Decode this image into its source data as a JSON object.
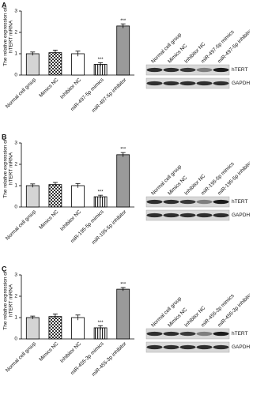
{
  "chart_data": [
    {
      "type": "bar",
      "panel": "A",
      "y_label": [
        "The relative expression of",
        "hTERT mRNA"
      ],
      "categories": [
        "Normal cell group",
        "Mimics NC",
        "Inhibitor NC",
        "miR-497-5p mimics",
        "miR-497-5p inhibitor"
      ],
      "values": [
        1.0,
        1.05,
        1.0,
        0.5,
        2.3
      ],
      "errors": [
        0.08,
        0.12,
        0.12,
        0.08,
        0.1
      ],
      "significance": [
        null,
        null,
        null,
        "***",
        "***"
      ],
      "fills": [
        "#d4d4d4",
        "checker",
        "#ffffff",
        "stripes",
        "#9a9a9a"
      ],
      "ylim": [
        0,
        3
      ],
      "yticks": [
        0,
        1,
        2,
        3
      ],
      "blot_rows": [
        "hTERT",
        "GAPDH"
      ]
    },
    {
      "type": "bar",
      "panel": "B",
      "y_label": [
        "The relative expression of",
        "hTERT mRNA"
      ],
      "categories": [
        "Normal cell group",
        "Mimics NC",
        "Inhibitor NC",
        "miR-195-5p mimics",
        "miR-195-5p inhibitor"
      ],
      "values": [
        1.0,
        1.05,
        1.0,
        0.48,
        2.45
      ],
      "errors": [
        0.08,
        0.1,
        0.1,
        0.07,
        0.1
      ],
      "significance": [
        null,
        null,
        null,
        "***",
        "***"
      ],
      "fills": [
        "#d4d4d4",
        "checker",
        "#ffffff",
        "stripes",
        "#9a9a9a"
      ],
      "ylim": [
        0,
        3
      ],
      "yticks": [
        0,
        1,
        2,
        3
      ],
      "blot_rows": [
        "hTERT",
        "GAPDH"
      ]
    },
    {
      "type": "bar",
      "panel": "C",
      "y_label": [
        "The relative expression of",
        "hTERT mRNA"
      ],
      "categories": [
        "Normal cell group",
        "Mimics NC",
        "Inhibitor NC",
        "miR-455-3p mimics",
        "miR-455-3p inhibitor"
      ],
      "values": [
        1.0,
        1.05,
        1.0,
        0.52,
        2.33
      ],
      "errors": [
        0.07,
        0.12,
        0.12,
        0.1,
        0.08
      ],
      "significance": [
        null,
        null,
        null,
        "***",
        "***"
      ],
      "fills": [
        "#d4d4d4",
        "checker",
        "#ffffff",
        "stripes",
        "#9a9a9a"
      ],
      "ylim": [
        0,
        3
      ],
      "yticks": [
        0,
        1,
        2,
        3
      ],
      "blot_rows": [
        "hTERT",
        "GAPDH"
      ]
    }
  ]
}
